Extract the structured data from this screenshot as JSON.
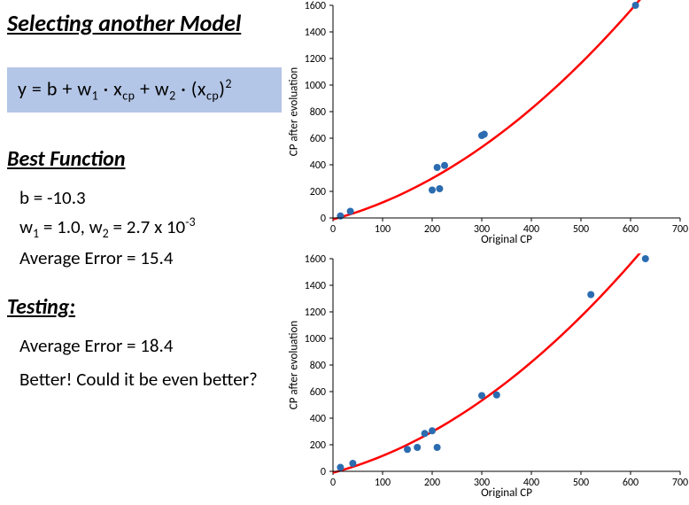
{
  "title": "Selecting another Model",
  "formula": "y = b + w₁ · x꜀ₚ + w₂ · (x꜀ₚ)²",
  "formula_html": "y = b + w<sub>1</sub> · x<sub>cp</sub> + w<sub>2</sub> · (x<sub>cp</sub>)<sup>2</sup>",
  "formula_bg": "#b4c6e7",
  "best_function": {
    "heading": "Best Function",
    "b_line_html": "b = -10.3",
    "w_line_html": "w<sub>1</sub> = 1.0, w<sub>2</sub> = 2.7 x 10<sup>-3</sup>",
    "error_line": "Average Error = 15.4",
    "b": -10.3,
    "w1": 1.0,
    "w2": 0.0027,
    "avg_error": 15.4
  },
  "testing": {
    "heading": "Testing:",
    "error_line": "Average Error = 18.4",
    "comment": "Better! Could it be even better?",
    "avg_error": 18.4
  },
  "charts": {
    "common": {
      "xlabel": "Original CP",
      "ylabel": "CP after evoluation",
      "xlim": [
        0,
        700
      ],
      "ylim": [
        0,
        1600
      ],
      "xtick_step": 100,
      "ytick_step": 200,
      "background_color": "#ffffff",
      "axis_color": "#000000",
      "label_fontsize": 13,
      "tick_fontsize": 12,
      "curve_color": "#ff0000",
      "curve_width": 2.5,
      "point_color": "#2b6cb0",
      "point_radius": 4,
      "curve": {
        "b": -10.3,
        "w1": 1.0,
        "w2": 0.0027,
        "x_from": 0,
        "x_to": 640,
        "steps": 60
      }
    },
    "top": {
      "type": "scatter+line",
      "points": [
        {
          "x": 15,
          "y": 15
        },
        {
          "x": 35,
          "y": 50
        },
        {
          "x": 200,
          "y": 210
        },
        {
          "x": 210,
          "y": 380
        },
        {
          "x": 215,
          "y": 220
        },
        {
          "x": 225,
          "y": 395
        },
        {
          "x": 300,
          "y": 620
        },
        {
          "x": 305,
          "y": 630
        },
        {
          "x": 610,
          "y": 1600
        }
      ]
    },
    "bottom": {
      "type": "scatter+line",
      "points": [
        {
          "x": 15,
          "y": 30
        },
        {
          "x": 40,
          "y": 60
        },
        {
          "x": 150,
          "y": 165
        },
        {
          "x": 170,
          "y": 180
        },
        {
          "x": 185,
          "y": 285
        },
        {
          "x": 200,
          "y": 305
        },
        {
          "x": 210,
          "y": 180
        },
        {
          "x": 300,
          "y": 570
        },
        {
          "x": 330,
          "y": 575
        },
        {
          "x": 520,
          "y": 1330
        },
        {
          "x": 630,
          "y": 1640
        }
      ]
    }
  }
}
